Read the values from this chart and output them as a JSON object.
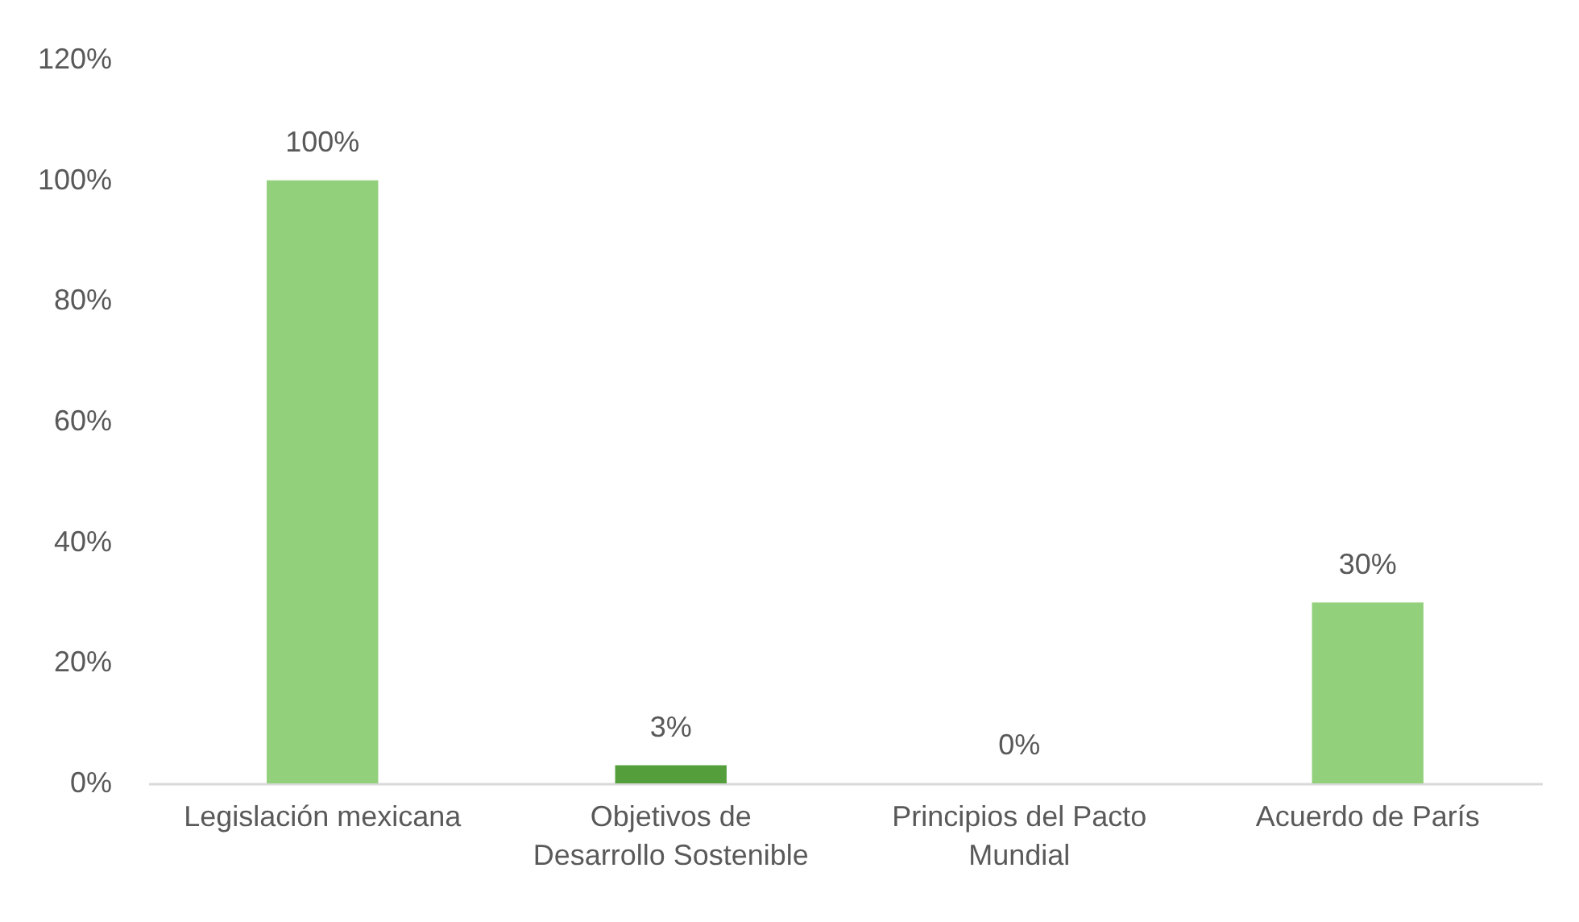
{
  "chart_data": {
    "type": "bar",
    "categories": [
      "Legislación mexicana",
      "Objetivos de Desarrollo Sostenible",
      "Principios del Pacto Mundial",
      "Acuerdo de París"
    ],
    "values": [
      100,
      3,
      0,
      30
    ],
    "colors": [
      "#92d07c",
      "#559e3c",
      "#92d07c",
      "#92d07c"
    ],
    "value_labels": [
      "100%",
      "3%",
      "0%",
      "30%"
    ],
    "ylim": [
      0,
      120
    ],
    "yticks": [
      {
        "value": 0,
        "label": "0%"
      },
      {
        "value": 20,
        "label": "20%"
      },
      {
        "value": 40,
        "label": "40%"
      },
      {
        "value": 60,
        "label": "60%"
      },
      {
        "value": 80,
        "label": "80%"
      },
      {
        "value": 100,
        "label": "100%"
      },
      {
        "value": 120,
        "label": "120%"
      }
    ]
  }
}
